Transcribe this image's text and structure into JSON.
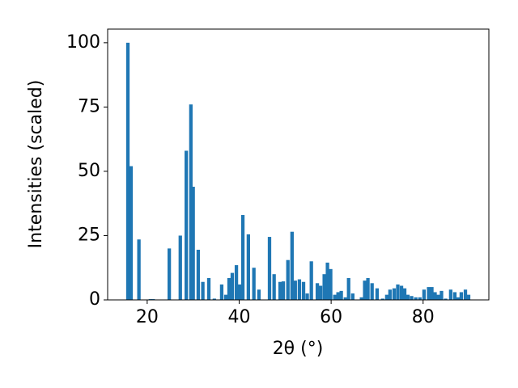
{
  "chart_data": {
    "type": "bar",
    "x_label": "2θ (°)",
    "y_label": "Intensities (scaled)",
    "color": "#1f77b4",
    "x": [
      15.8,
      16.5,
      18.2,
      20.7,
      21.3,
      24.8,
      27.2,
      28.5,
      29.5,
      30.0,
      31.1,
      32.1,
      33.4,
      34.6,
      36.2,
      37.1,
      37.8,
      38.5,
      39.4,
      40.1,
      40.8,
      42.0,
      43.2,
      44.3,
      46.6,
      47.6,
      48.9,
      49.6,
      50.6,
      51.5,
      52.2,
      53.1,
      54.0,
      54.8,
      55.7,
      57.0,
      57.7,
      58.5,
      59.2,
      59.9,
      60.8,
      61.5,
      62.2,
      63.1,
      63.8,
      64.7,
      66.6,
      67.3,
      68.0,
      68.9,
      70.0,
      71.2,
      72.1,
      72.8,
      73.7,
      74.5,
      75.3,
      76.0,
      76.7,
      77.5,
      78.4,
      79.3,
      80.2,
      81.2,
      81.9,
      82.6,
      83.3,
      84.0,
      84.9,
      86.0,
      86.9,
      87.6,
      88.3,
      89.2,
      89.9
    ],
    "values": [
      100,
      52,
      23.5,
      0.3,
      0.3,
      20,
      25,
      58,
      76,
      44,
      19.5,
      7,
      8.5,
      0.5,
      6,
      2,
      8.5,
      10.5,
      13.5,
      6,
      33,
      25.5,
      12.5,
      4,
      24.5,
      10,
      7,
      7.2,
      15.5,
      26.5,
      7.5,
      8,
      7,
      2.5,
      15,
      6.5,
      5.5,
      10,
      14.5,
      12,
      2,
      3,
      3.5,
      1,
      8.5,
      2.5,
      1,
      7.5,
      8.5,
      6.5,
      4.5,
      0.5,
      2,
      4,
      4.5,
      6,
      5.5,
      4.5,
      2,
      1.5,
      1,
      1,
      4,
      5,
      5,
      3,
      2,
      3.5,
      0.5,
      4,
      3,
      1,
      3,
      4,
      2
    ],
    "xlim": [
      11.4,
      94.3
    ],
    "ylim": [
      0,
      105.3
    ],
    "xticks": [
      20,
      40,
      60,
      80
    ],
    "yticks": [
      0,
      25,
      50,
      75,
      100
    ]
  }
}
